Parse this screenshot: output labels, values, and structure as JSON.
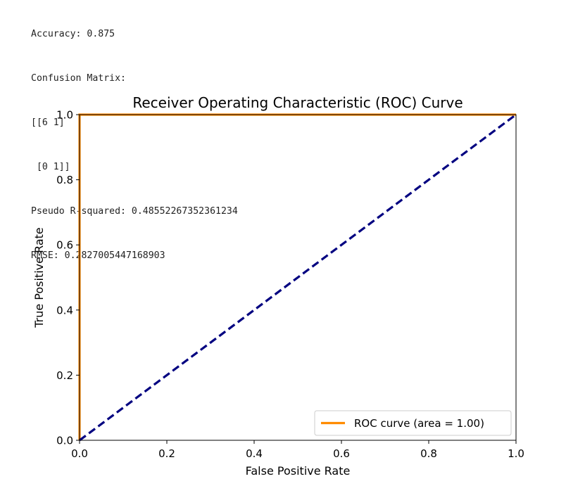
{
  "console": {
    "lines": [
      "Accuracy: 0.875",
      "Confusion Matrix:",
      "[[6 1]",
      " [0 1]]",
      "Pseudo R-squared: 0.48552267352361234",
      "RMSE: 0.2827005447168903"
    ]
  },
  "chart_data": {
    "type": "line",
    "title": "Receiver Operating Characteristic (ROC) Curve",
    "xlabel": "False Positive Rate",
    "ylabel": "True Positive Rate",
    "xlim": [
      0.0,
      1.0
    ],
    "ylim": [
      0.0,
      1.0
    ],
    "xticks": [
      "0.0",
      "0.2",
      "0.4",
      "0.6",
      "0.8",
      "1.0"
    ],
    "yticks": [
      "0.0",
      "0.2",
      "0.4",
      "0.6",
      "0.8",
      "1.0"
    ],
    "grid": false,
    "legend_position": "lower-right",
    "series": [
      {
        "name": "ROC curve (area = 1.00)",
        "color": "#ff8c00",
        "style": "solid",
        "x": [
          0.0,
          0.0,
          0.0,
          1.0
        ],
        "y": [
          0.0,
          0.0,
          1.0,
          1.0
        ]
      },
      {
        "color": "#000080",
        "style": "dashed",
        "x": [
          0.0,
          1.0
        ],
        "y": [
          0.0,
          1.0
        ]
      }
    ]
  }
}
